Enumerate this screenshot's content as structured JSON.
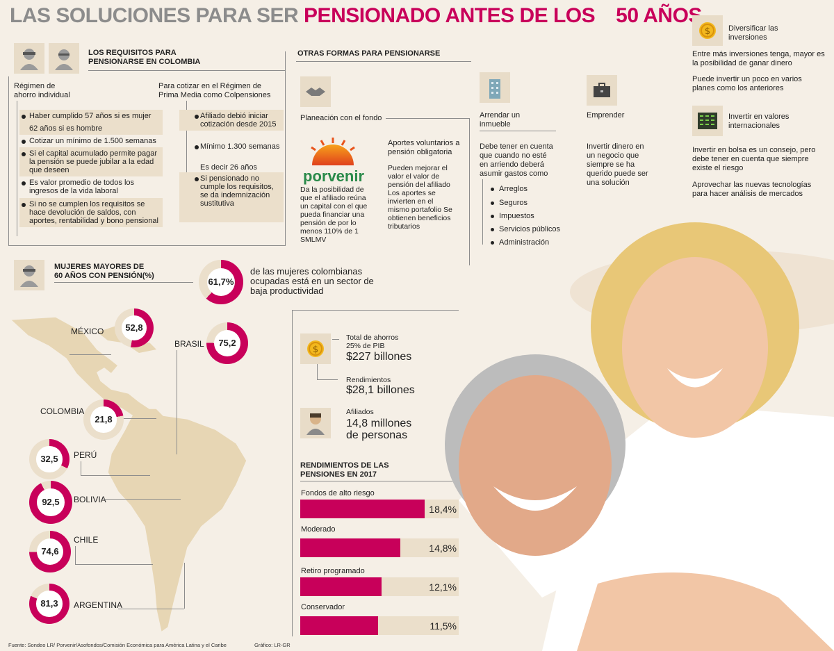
{
  "title": {
    "part1": "LAS SOLUCIONES PARA SER ",
    "part2": "PENSIONADO ANTES DE LOS",
    "part3": "50 AÑOS"
  },
  "requisitos": {
    "heading_line1": "LOS REQUISITOS PARA",
    "heading_line2": "PENSIONARSE EN COLOMBIA",
    "col1_title_line1": "Régimen de",
    "col1_title_line2": "ahorro individual",
    "col1_items": [
      "Haber cumplido 57 años si es mujer",
      "62 años si es hombre",
      "Cotizar un mínimo de 1.500 semanas",
      "Si el capital acumulado permite pagar la pensión se puede jubilar a la edad que deseen",
      "Es valor promedio de todos los ingresos de la vida laboral",
      "Si no se cumplen los requisitos se hace devolución de saldos, con aportes, rentabilidad y bono pensional"
    ],
    "col2_title_line1": "Para cotizar en el Régimen de",
    "col2_title_line2": "Prima Media como Colpensiones",
    "col2_items": [
      "Afiliado debió iniciar cotización desde 2015",
      "Mínimo 1.300 semanas",
      "Es decir 26 años",
      "Si pensionado no cumple los requisitos, se da indemnización sustitutiva"
    ]
  },
  "otras": {
    "heading": "OTRAS FORMAS PARA PENSIONARSE",
    "planeacion": "Planeación con el fondo",
    "porvenir_logo": "porvenir",
    "porvenir_text": "Da la posibilidad de que el afiliado reúna un capital con el que pueda financiar una pensión de por lo menos 110% de 1 SMLMV",
    "aportes_title": "Aportes voluntarios a pensión obligatoria",
    "aportes_text": "Pueden mejorar el valor el valor de pensión del afiliado Los aportes se invierten en el mismo portafolio Se obtienen beneficios tributarios",
    "arrendar_title": "Arrendar un inmueble",
    "arrendar_text": "Debe tener en cuenta que cuando no esté en arriendo deberá asumir gastos como",
    "arrendar_items": [
      "Arreglos",
      "Seguros",
      "Impuestos",
      "Servicios públicos",
      "Administración"
    ],
    "emprender_title": "Emprender",
    "emprender_text": "Invertir dinero en un negocio que siempre se ha querido puede ser una solución",
    "diversificar_title": "Diversificar las inversiones",
    "diversificar_text1": "Entre más inversiones tenga, mayor es la posibilidad de ganar dinero",
    "diversificar_text2": "Puede invertir un poco en varios planes como los anteriores",
    "invertir_title": "Invertir en valores internacionales",
    "invertir_text1": "Invertir en bolsa es un consejo, pero debe tener en cuenta que siempre existe el riesgo",
    "invertir_text2": "Aprovechar las nuevas tecnologías para hacer análisis de mercados"
  },
  "mujeres": {
    "heading_line1": "MUJERES MAYORES DE",
    "heading_line2": "60 AÑOS CON PENSIÓN(%)",
    "main_pct": "61,7%",
    "main_text": "de las mujeres colombianas ocupadas está en un sector de baja productividad",
    "countries": [
      {
        "name": "MÉXICO",
        "value": "52,8",
        "pct": 52.8
      },
      {
        "name": "BRASIL",
        "value": "75,2",
        "pct": 75.2
      },
      {
        "name": "COLOMBIA",
        "value": "21,8",
        "pct": 21.8
      },
      {
        "name": "PERÚ",
        "value": "32,5",
        "pct": 32.5
      },
      {
        "name": "BOLIVIA",
        "value": "92,5",
        "pct": 92.5
      },
      {
        "name": "CHILE",
        "value": "74,6",
        "pct": 74.6
      },
      {
        "name": "ARGENTINA",
        "value": "81,3",
        "pct": 81.3
      }
    ]
  },
  "stats": {
    "ahorros_label1": "Total de ahorros",
    "ahorros_label2": "25% de PIB",
    "ahorros_value": "$227 billones",
    "rend_label": "Rendimientos",
    "rend_value": "$28,1 billones",
    "afiliados_label": "Afiliados",
    "afiliados_value1": "14,8 millones",
    "afiliados_value2": "de personas"
  },
  "rendimientos": {
    "heading_line1": "RENDIMIENTOS DE LAS",
    "heading_line2": "PENSIONES EN 2017",
    "bars": [
      {
        "label": "Fondos de alto riesgo",
        "value": "18,4%",
        "num": 18.4
      },
      {
        "label": "Moderado",
        "value": "14,8%",
        "num": 14.8
      },
      {
        "label": "Retiro programado",
        "value": "12,1%",
        "num": 12.1
      },
      {
        "label": "Conservador",
        "value": "11,5%",
        "num": 11.5
      }
    ]
  },
  "footer": {
    "source": "Fuente: Sondeo LR/ Porvenir/Asofondos/Comisión Económica para América Latina y el Caribe",
    "credit": "Gráfico: LR-GR"
  },
  "colors": {
    "accent": "#c8005a",
    "ring_bg": "#ebdfcb"
  }
}
